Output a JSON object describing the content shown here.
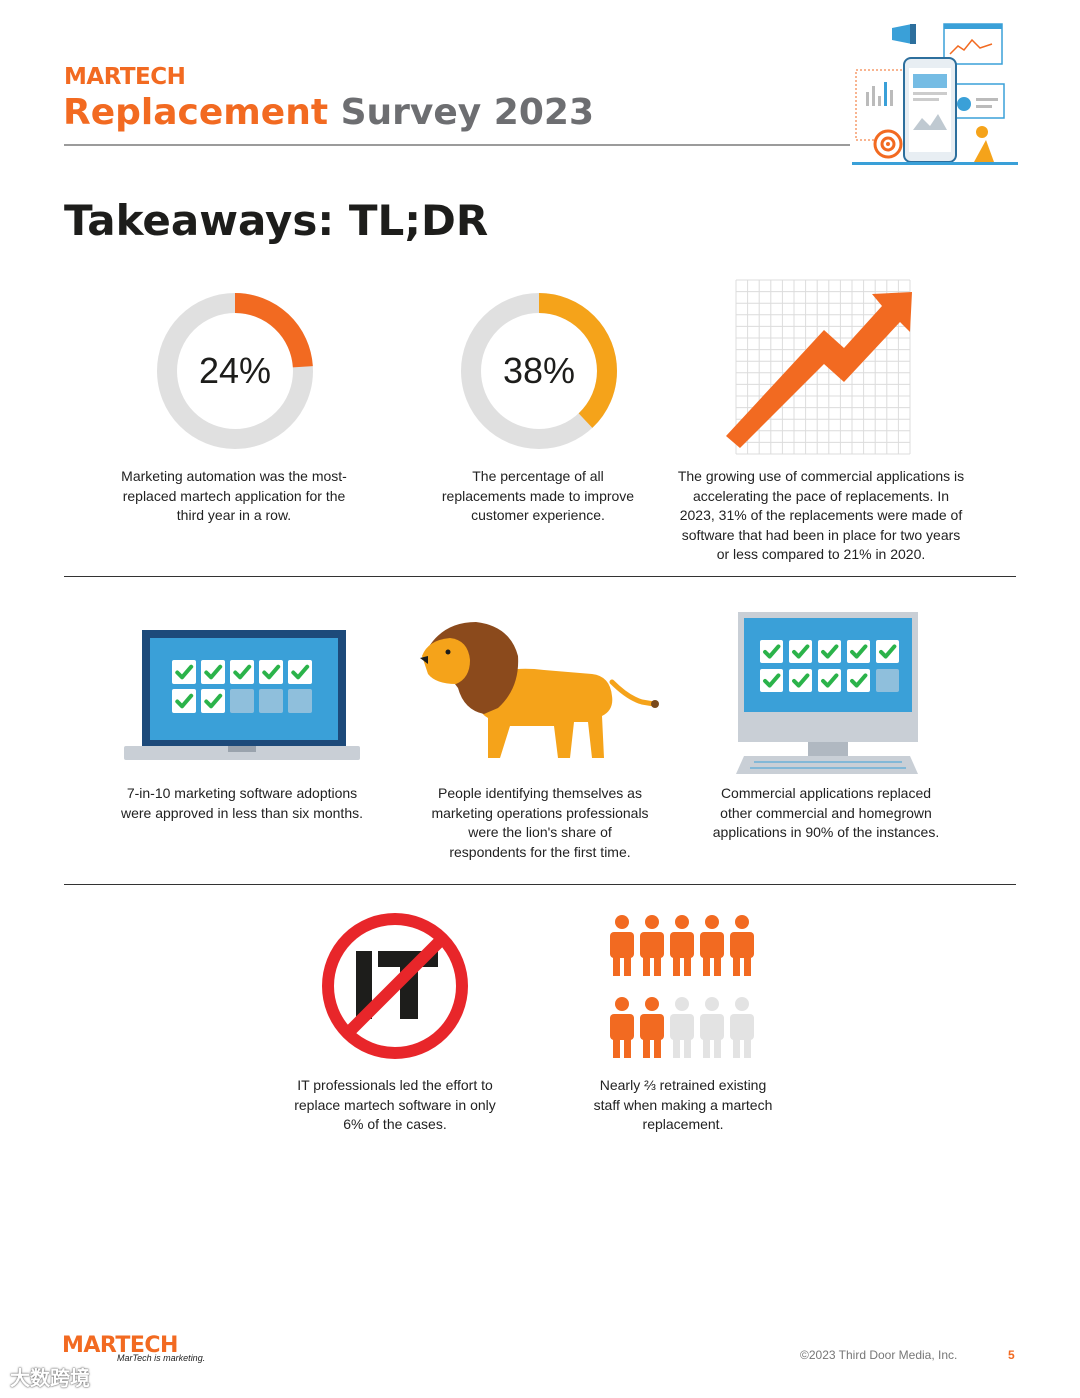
{
  "header": {
    "brand": "MARTECH",
    "title_part1": "Replacement",
    "title_part2": "Survey 2023"
  },
  "heading": "Takeaways: TL;DR",
  "colors": {
    "accent_orange": "#f26a21",
    "accent_amber": "#f5a31a",
    "ring_gray": "#e0e0e0",
    "no_symbol_red": "#e8262a",
    "gray_text": "#6d6e71",
    "screen_blue": "#3aa0d8",
    "check_green": "#2bb34a"
  },
  "takeaways": [
    {
      "id": "automation",
      "percent": 24,
      "value_label": "24%",
      "caption": "Marketing automation was the most-replaced martech application for the third year in a row."
    },
    {
      "id": "customer-experience",
      "percent": 38,
      "value_label": "38%",
      "caption": "The percentage of all replacements made to improve customer experience."
    },
    {
      "id": "commercial-growth",
      "icon": "trend-arrow-icon",
      "caption": "The growing use of commercial applications is accelerating the pace of replacements. In 2023, 31% of the replacements were made of software that had been in place for two years or less compared to 21% in 2020."
    },
    {
      "id": "adoptions",
      "icon": "laptop-checklist-icon",
      "checked": 7,
      "total": 10,
      "caption": "7-in-10 marketing software adoptions were approved in less than six months."
    },
    {
      "id": "marketing-ops",
      "icon": "lion-icon",
      "caption": "People identifying themselves as marketing operations professionals were the lion's share of respondents for the first time."
    },
    {
      "id": "commercial-replaced",
      "icon": "desktop-checklist-icon",
      "checked": 9,
      "total": 10,
      "caption": "Commercial applications replaced other commercial and homegrown applications in 90% of the instances."
    },
    {
      "id": "it-led",
      "icon": "no-it-icon",
      "caption": "IT professionals led the effort to replace martech software in only 6% of the cases."
    },
    {
      "id": "retrained-staff",
      "icon": "people-group-icon",
      "highlighted": 7,
      "total": 10,
      "caption": "Nearly ⅔ retrained existing staff when making a martech replacement."
    }
  ],
  "footer": {
    "brand": "MARTECH",
    "tagline": "MarTech is marketing.",
    "copyright": "©2023 Third Door Media, Inc.",
    "page_number": "5",
    "watermark": "大数跨境"
  }
}
